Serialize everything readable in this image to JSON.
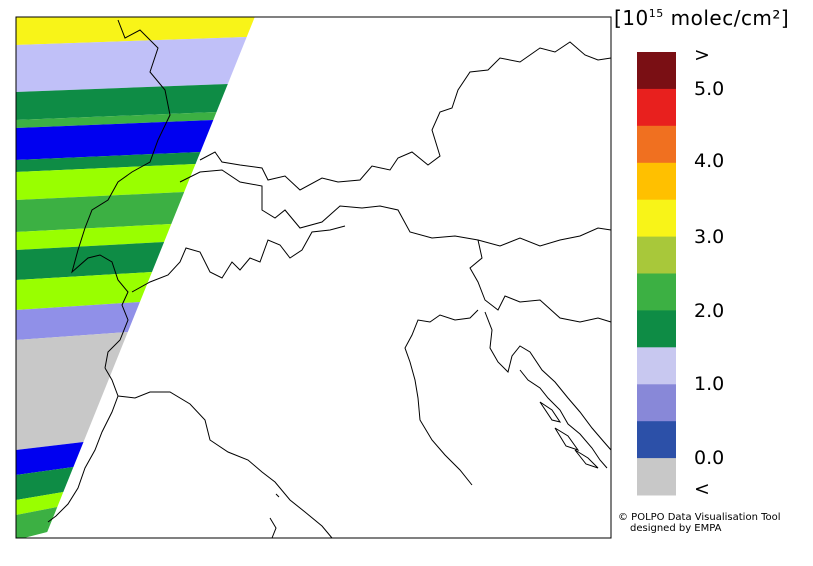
{
  "legend": {
    "unit_prefix": "[10",
    "unit_exponent": "15",
    "unit_suffix": " molec/cm²]",
    "tick_labels": [
      ">",
      "5.0",
      "4.0",
      "3.0",
      "2.0",
      "1.0",
      "0.0",
      "<"
    ],
    "colors": [
      "#7a0f14",
      "#e8201e",
      "#f07020",
      "#ffc000",
      "#f8f418",
      "#a8c83a",
      "#3cb043",
      "#0e8c45",
      "#c8c8f0",
      "#8888d8",
      "#2c50a8",
      "#c8c8c8"
    ]
  },
  "credit": {
    "line1": "© POLPO Data Visualisation Tool",
    "line2": "designed by EMPA"
  },
  "swath_colors": {
    "yellow": "#f8f418",
    "light_green": "#a8c83a",
    "lime": "#99ff00",
    "green": "#0e8c45",
    "medium_green": "#3cb043",
    "blue": "#0000f0",
    "lavender": "#c0c0f8",
    "periwinkle": "#9090e8",
    "grey": "#c8c8c8"
  }
}
